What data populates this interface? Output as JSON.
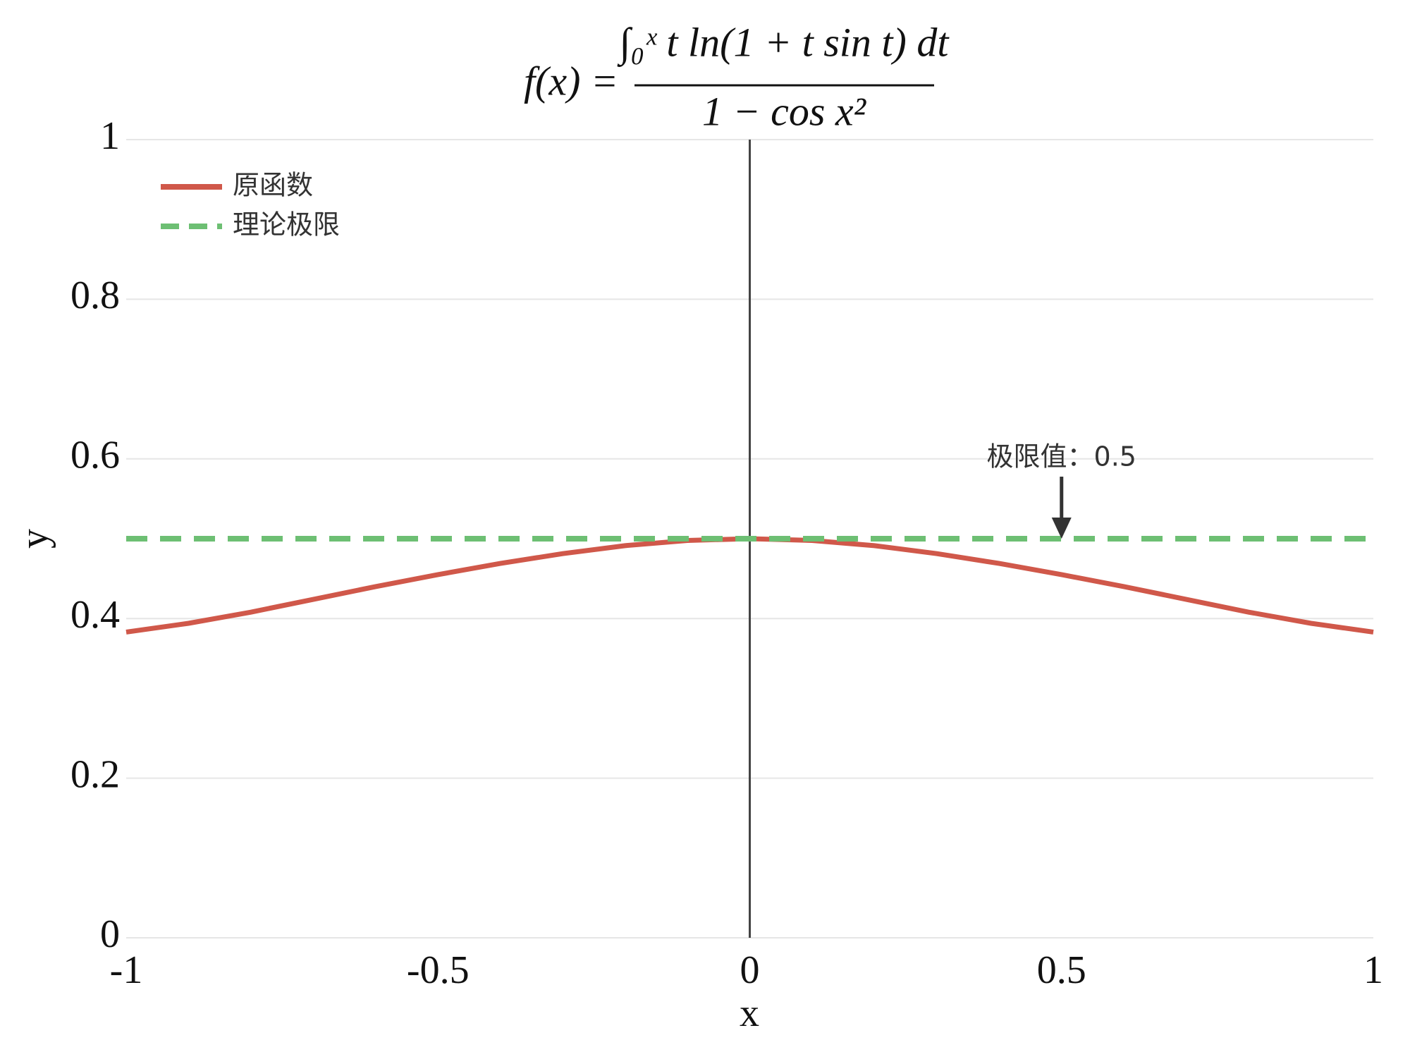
{
  "chart_data": {
    "type": "line",
    "title": {
      "lhs": "f(x) =",
      "numerator": "∫₀ˣ t ln(1 + t sin t) dt",
      "denominator": "1 − cos x²"
    },
    "x": [
      -1,
      -0.9,
      -0.8,
      -0.7,
      -0.6,
      -0.5,
      -0.4,
      -0.3,
      -0.2,
      -0.1,
      0,
      0.1,
      0.2,
      0.3,
      0.4,
      0.5,
      0.6,
      0.7,
      0.8,
      0.9,
      1
    ],
    "series": [
      {
        "name": "原函数",
        "color": "#d0584a",
        "style": "solid",
        "values": [
          0.383,
          0.394,
          0.408,
          0.424,
          0.44,
          0.455,
          0.469,
          0.4813,
          0.4913,
          0.4978,
          0.5,
          0.4978,
          0.4913,
          0.4813,
          0.469,
          0.455,
          0.44,
          0.424,
          0.408,
          0.394,
          0.383
        ]
      },
      {
        "name": "理论极限",
        "color": "#6dbf73",
        "style": "dashed",
        "values": [
          0.5,
          0.5,
          0.5,
          0.5,
          0.5,
          0.5,
          0.5,
          0.5,
          0.5,
          0.5,
          0.5,
          0.5,
          0.5,
          0.5,
          0.5,
          0.5,
          0.5,
          0.5,
          0.5,
          0.5,
          0.5
        ]
      }
    ],
    "xlabel": "x",
    "ylabel": "y",
    "xlim": [
      -1,
      1
    ],
    "ylim": [
      0,
      1
    ],
    "xticks": [
      -1,
      -0.5,
      0,
      0.5,
      1
    ],
    "yticks": [
      0,
      0.2,
      0.4,
      0.6,
      0.8,
      1
    ],
    "grid": true,
    "legend": "upper left",
    "annotation": {
      "text": "极限值：0.5",
      "x": 0.5,
      "y": 0.5
    }
  }
}
